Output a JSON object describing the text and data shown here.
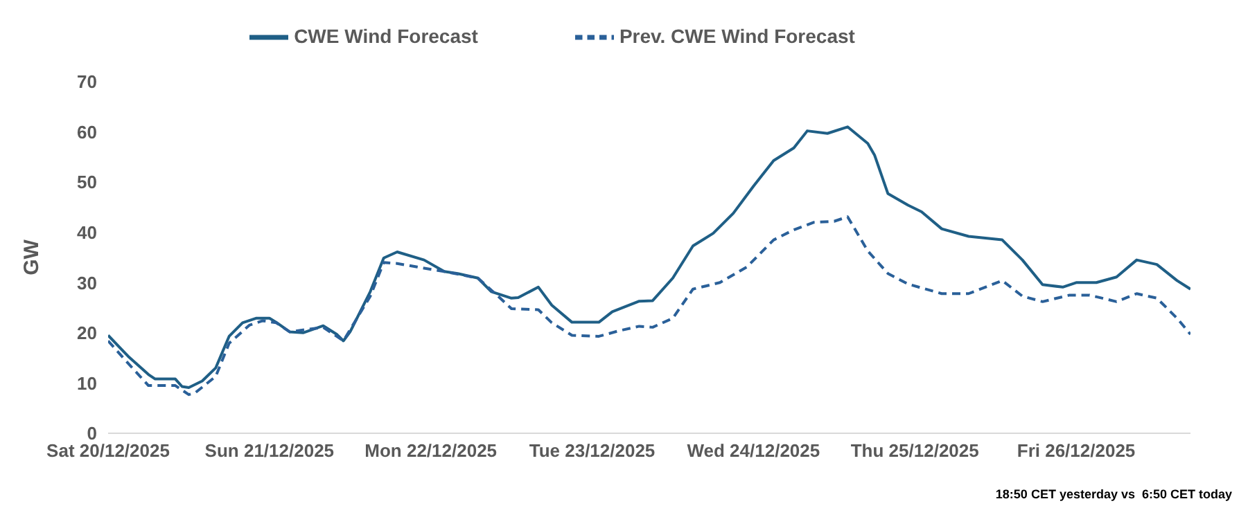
{
  "chart_data": {
    "type": "line",
    "ylabel": "GW",
    "ylim": [
      0,
      70
    ],
    "yticks": [
      0,
      10,
      20,
      30,
      40,
      50,
      60,
      70
    ],
    "xlim": [
      "2025-12-20T00:00",
      "2025-12-26T17:00"
    ],
    "xticks": [
      {
        "value": "2025-12-20",
        "label": "Sat 20/12/2025"
      },
      {
        "value": "2025-12-21",
        "label": "Sun 21/12/2025"
      },
      {
        "value": "2025-12-22",
        "label": "Mon 22/12/2025"
      },
      {
        "value": "2025-12-23",
        "label": "Tue 23/12/2025"
      },
      {
        "value": "2025-12-24",
        "label": "Wed 24/12/2025"
      },
      {
        "value": "2025-12-25",
        "label": "Thu 25/12/2025"
      },
      {
        "value": "2025-12-26",
        "label": "Fri 26/12/2025"
      }
    ],
    "grid": false,
    "legend": "top",
    "marker": "none",
    "annotations": [
      "18:50 CET yesterday vs  6:50 CET today"
    ],
    "series": [
      {
        "name": "CWE Wind Forecast",
        "color": "#1f5f86",
        "line_style": "solid",
        "x": [
          "2025-12-20T00:00",
          "2025-12-20T03:00",
          "2025-12-20T06:00",
          "2025-12-20T07:00",
          "2025-12-20T10:00",
          "2025-12-20T11:00",
          "2025-12-20T12:00",
          "2025-12-20T14:00",
          "2025-12-20T16:00",
          "2025-12-20T18:00",
          "2025-12-20T20:00",
          "2025-12-20T22:00",
          "2025-12-21T00:00",
          "2025-12-21T01:00",
          "2025-12-21T03:00",
          "2025-12-21T05:00",
          "2025-12-21T08:00",
          "2025-12-21T10:00",
          "2025-12-21T11:00",
          "2025-12-21T12:00",
          "2025-12-21T15:00",
          "2025-12-21T17:00",
          "2025-12-21T19:00",
          "2025-12-21T23:00",
          "2025-12-22T02:00",
          "2025-12-22T04:00",
          "2025-12-22T07:00",
          "2025-12-22T09:00",
          "2025-12-22T12:00",
          "2025-12-22T13:00",
          "2025-12-22T16:00",
          "2025-12-22T18:00",
          "2025-12-22T21:00",
          "2025-12-23T01:00",
          "2025-12-23T03:00",
          "2025-12-23T07:00",
          "2025-12-23T09:00",
          "2025-12-23T12:00",
          "2025-12-23T15:00",
          "2025-12-23T18:00",
          "2025-12-23T21:00",
          "2025-12-24T00:00",
          "2025-12-24T03:00",
          "2025-12-24T06:00",
          "2025-12-24T08:00",
          "2025-12-24T11:00",
          "2025-12-24T14:00",
          "2025-12-24T17:00",
          "2025-12-24T18:00",
          "2025-12-24T20:00",
          "2025-12-24T23:00",
          "2025-12-25T01:00",
          "2025-12-25T04:00",
          "2025-12-25T08:00",
          "2025-12-25T13:00",
          "2025-12-25T16:00",
          "2025-12-25T19:00",
          "2025-12-25T22:00",
          "2025-12-26T00:00",
          "2025-12-26T03:00",
          "2025-12-26T06:00",
          "2025-12-26T09:00",
          "2025-12-26T12:00",
          "2025-12-26T15:00",
          "2025-12-26T17:00"
        ],
        "values": [
          19.5,
          15.3,
          11.7,
          10.8,
          10.8,
          9.3,
          9.1,
          10.4,
          13,
          19.3,
          22,
          22.9,
          22.9,
          22.1,
          20.2,
          20,
          21.4,
          19.7,
          18.4,
          20.2,
          28.2,
          34.9,
          36.1,
          34.5,
          32.2,
          31.8,
          30.9,
          28.2,
          26.9,
          27,
          29.1,
          25.5,
          22.1,
          22.1,
          24.2,
          26.3,
          26.4,
          30.9,
          37.3,
          39.8,
          43.8,
          49.2,
          54.3,
          56.8,
          60.2,
          59.7,
          61,
          57.7,
          55.4,
          47.7,
          45.4,
          44.1,
          40.7,
          39.2,
          38.5,
          34.5,
          29.6,
          29.1,
          30,
          30,
          31.1,
          34.5,
          33.6,
          30.4,
          28.7
        ]
      },
      {
        "name": "Prev. CWE Wind Forecast",
        "color": "#2a6099",
        "line_style": "dashed",
        "x": [
          "2025-12-20T00:00",
          "2025-12-20T03:00",
          "2025-12-20T06:00",
          "2025-12-20T10:00",
          "2025-12-20T11:00",
          "2025-12-20T12:00",
          "2025-12-20T13:00",
          "2025-12-20T16:00",
          "2025-12-20T18:00",
          "2025-12-20T21:00",
          "2025-12-20T23:00",
          "2025-12-21T01:00",
          "2025-12-21T03:00",
          "2025-12-21T08:00",
          "2025-12-21T11:00",
          "2025-12-21T15:00",
          "2025-12-21T17:00",
          "2025-12-21T19:00",
          "2025-12-21T22:00",
          "2025-12-22T02:00",
          "2025-12-22T07:00",
          "2025-12-22T10:00",
          "2025-12-22T12:00",
          "2025-12-22T16:00",
          "2025-12-22T18:00",
          "2025-12-22T21:00",
          "2025-12-23T01:00",
          "2025-12-23T04:00",
          "2025-12-23T07:00",
          "2025-12-23T09:00",
          "2025-12-23T12:00",
          "2025-12-23T15:00",
          "2025-12-23T19:00",
          "2025-12-23T23:00",
          "2025-12-24T03:00",
          "2025-12-24T06:00",
          "2025-12-24T09:00",
          "2025-12-24T12:00",
          "2025-12-24T14:00",
          "2025-12-24T17:00",
          "2025-12-24T20:00",
          "2025-12-24T23:00",
          "2025-12-25T04:00",
          "2025-12-25T08:00",
          "2025-12-25T13:00",
          "2025-12-25T16:00",
          "2025-12-25T19:00",
          "2025-12-25T23:00",
          "2025-12-26T02:00",
          "2025-12-26T06:00",
          "2025-12-26T09:00",
          "2025-12-26T12:00",
          "2025-12-26T15:00",
          "2025-12-26T17:00"
        ],
        "values": [
          18.4,
          13.9,
          9.5,
          9.5,
          8.6,
          7.7,
          8.1,
          11.3,
          17.9,
          21.5,
          22.4,
          22,
          20.2,
          21.1,
          18.4,
          27.3,
          34,
          33.8,
          33.1,
          32.2,
          30.9,
          27.3,
          24.8,
          24.6,
          22,
          19.5,
          19.3,
          20.4,
          21.3,
          21.1,
          22.9,
          28.7,
          30,
          33.1,
          38.5,
          40.5,
          42,
          42.2,
          43.1,
          36.3,
          31.8,
          29.7,
          27.8,
          27.8,
          30.4,
          27.3,
          26.2,
          27.5,
          27.5,
          26.2,
          27.8,
          26.9,
          22.9,
          19.7
        ]
      }
    ]
  }
}
